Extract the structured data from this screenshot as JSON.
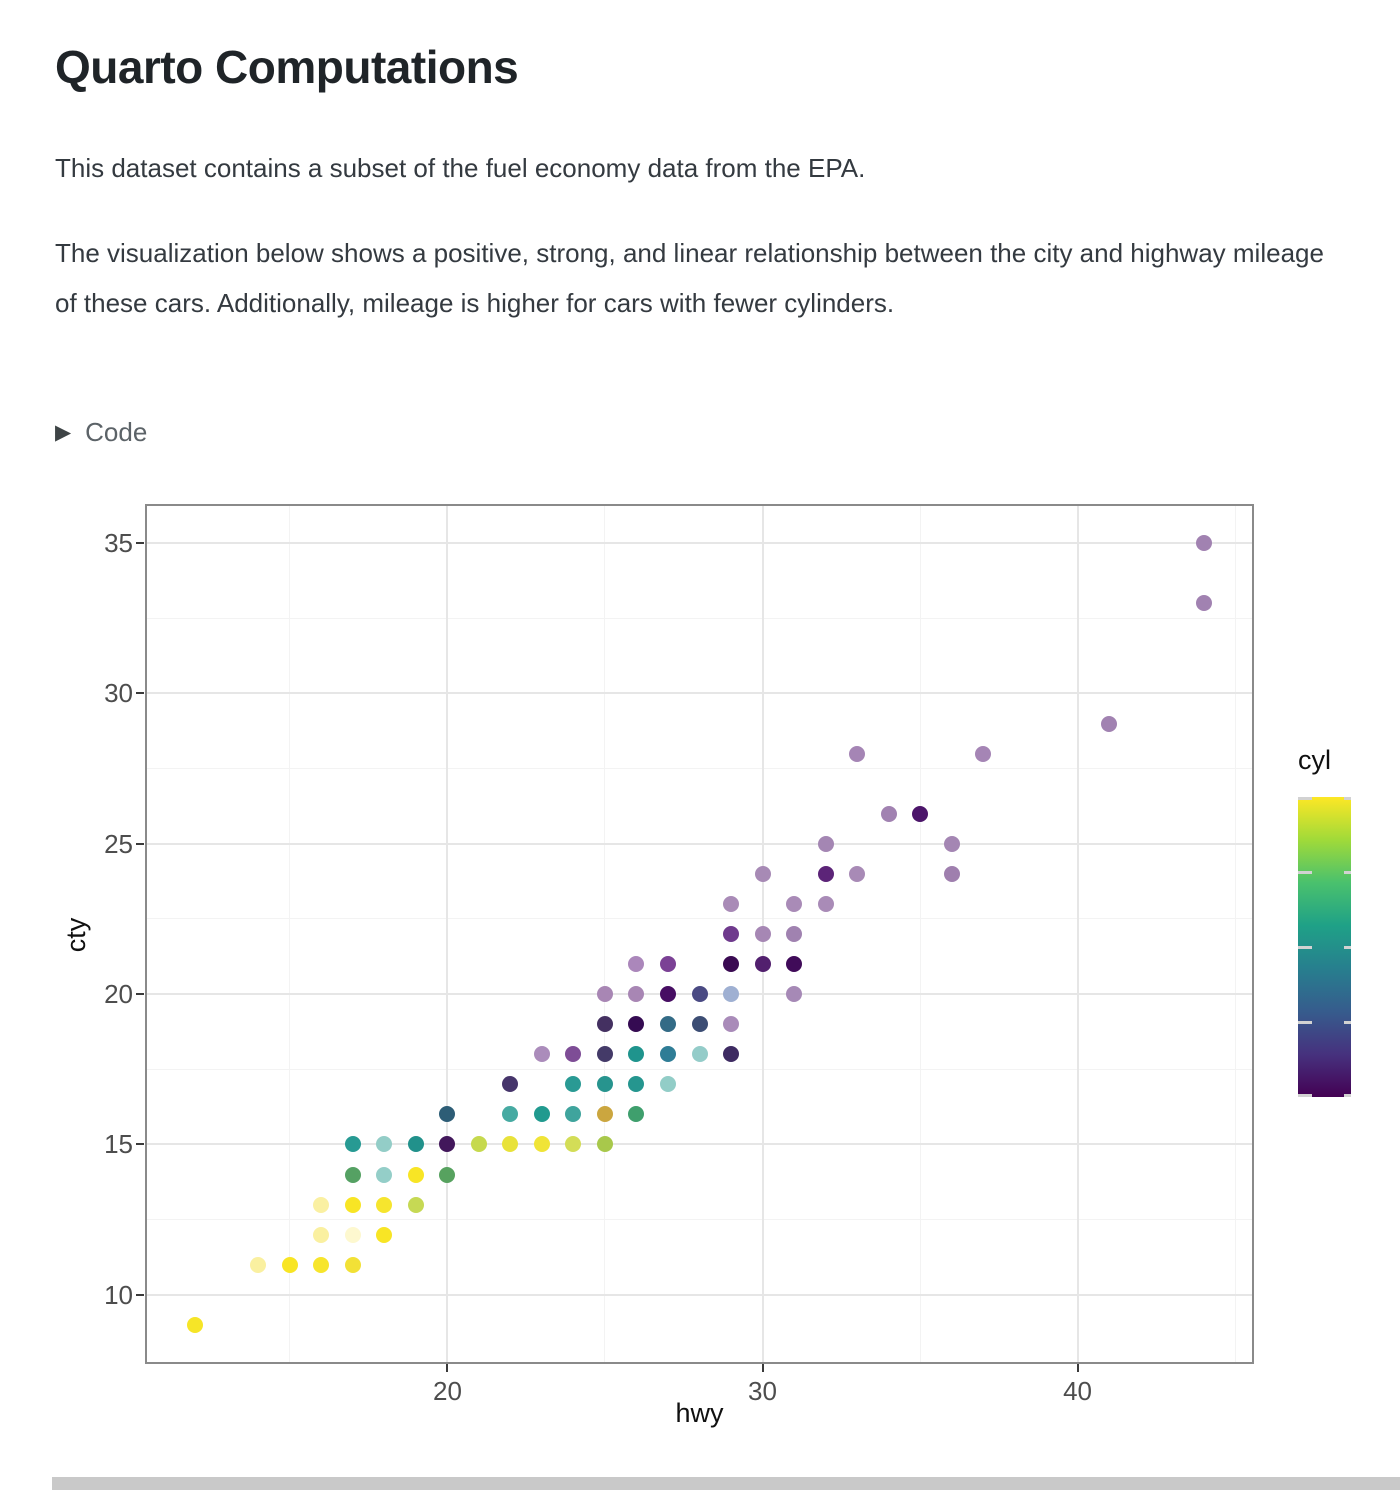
{
  "page": {
    "title": "Quarto Computations",
    "paragraph1": "This dataset contains a subset of the fuel economy data from the EPA.",
    "paragraph2": "The visualization below shows a positive, strong, and linear relationship between the city and highway mileage of these cars. Additionally, mileage is higher for cars with fewer cylinders.",
    "code_toggle": {
      "marker": "▶",
      "label": "Code"
    }
  },
  "chart_data": {
    "type": "scatter",
    "title": "",
    "xlabel": "hwy",
    "ylabel": "cty",
    "x_domain": [
      10.4,
      45.6
    ],
    "y_domain": [
      7.7,
      36.3
    ],
    "x_major_ticks": [
      20,
      30,
      40
    ],
    "x_minor_ticks": [
      15,
      25,
      35,
      45
    ],
    "y_major_ticks": [
      10,
      15,
      20,
      25,
      30,
      35
    ],
    "y_minor_ticks": [
      12.5,
      17.5,
      22.5,
      27.5,
      32.5
    ],
    "grid": {
      "major_color": "#e6e6e6",
      "minor_color": "#f3f3f3",
      "panel_border_color": "#8a8a8a",
      "tick_color": "#3a3a3a",
      "tick_label_color": "#4d4d4d"
    },
    "legend": {
      "title": "cyl",
      "domain": [
        4,
        8
      ],
      "ticks": [
        4,
        5,
        6,
        7,
        8
      ],
      "gradient_bottom_to_top": [
        "#440154",
        "#46327e",
        "#365c8d",
        "#277f8e",
        "#1fa187",
        "#4ac16d",
        "#a0da39",
        "#fde725"
      ],
      "tick_color": "#d2d2d2"
    },
    "points_hwy_cty_color": [
      [
        12,
        9,
        "#f6e527"
      ],
      [
        14,
        11,
        "#faf0a0"
      ],
      [
        15,
        11,
        "#f8e524"
      ],
      [
        16,
        11,
        "#f7e52c"
      ],
      [
        17,
        11,
        "#f2e136"
      ],
      [
        16,
        12,
        "#faf0a0"
      ],
      [
        17,
        12,
        "#fdf8cf"
      ],
      [
        18,
        12,
        "#f8e525"
      ],
      [
        16,
        13,
        "#faf0a2"
      ],
      [
        17,
        13,
        "#f8e525"
      ],
      [
        18,
        13,
        "#f6e52e"
      ],
      [
        19,
        13,
        "#c6d954"
      ],
      [
        17,
        14,
        "#55a163"
      ],
      [
        18,
        14,
        "#94cec8"
      ],
      [
        19,
        14,
        "#f8e525"
      ],
      [
        20,
        14,
        "#57a25f"
      ],
      [
        17,
        15,
        "#279a93"
      ],
      [
        18,
        15,
        "#93cdc7"
      ],
      [
        19,
        15,
        "#21918b"
      ],
      [
        20,
        15,
        "#42175b"
      ],
      [
        21,
        15,
        "#c6d94e"
      ],
      [
        22,
        15,
        "#e8e23a"
      ],
      [
        23,
        15,
        "#f0e437"
      ],
      [
        24,
        15,
        "#d3dd57"
      ],
      [
        25,
        15,
        "#a8c84b"
      ],
      [
        20,
        16,
        "#2d5d76"
      ],
      [
        22,
        16,
        "#46aaa2"
      ],
      [
        23,
        16,
        "#219a8f"
      ],
      [
        24,
        16,
        "#3fa49d"
      ],
      [
        25,
        16,
        "#cba63f"
      ],
      [
        26,
        16,
        "#3f9f6d"
      ],
      [
        22,
        17,
        "#46356b"
      ],
      [
        24,
        17,
        "#2a9a94"
      ],
      [
        25,
        17,
        "#27948e"
      ],
      [
        26,
        17,
        "#25968f"
      ],
      [
        27,
        17,
        "#92cdc7"
      ],
      [
        23,
        18,
        "#ab8cbb"
      ],
      [
        24,
        18,
        "#7e4d96"
      ],
      [
        25,
        18,
        "#443a68"
      ],
      [
        26,
        18,
        "#1f948d"
      ],
      [
        27,
        18,
        "#2f7d96"
      ],
      [
        28,
        18,
        "#94ccc9"
      ],
      [
        29,
        18,
        "#3e2b62"
      ],
      [
        25,
        19,
        "#443061"
      ],
      [
        26,
        19,
        "#350b52"
      ],
      [
        27,
        19,
        "#336b86"
      ],
      [
        28,
        19,
        "#3c4d74"
      ],
      [
        29,
        19,
        "#a98bb9"
      ],
      [
        25,
        20,
        "#a886b4"
      ],
      [
        26,
        20,
        "#a886b4"
      ],
      [
        27,
        20,
        "#470e63"
      ],
      [
        28,
        20,
        "#4a4a83"
      ],
      [
        29,
        20,
        "#9fb0d2"
      ],
      [
        31,
        20,
        "#a689b6"
      ],
      [
        26,
        21,
        "#ab87bb"
      ],
      [
        27,
        21,
        "#7b4195"
      ],
      [
        29,
        21,
        "#3a0a52"
      ],
      [
        30,
        21,
        "#52206e"
      ],
      [
        31,
        21,
        "#400b59"
      ],
      [
        29,
        22,
        "#6f3a8d"
      ],
      [
        30,
        22,
        "#a687b4"
      ],
      [
        31,
        22,
        "#a082b0"
      ],
      [
        29,
        23,
        "#a98bb7"
      ],
      [
        31,
        23,
        "#a98bb7"
      ],
      [
        32,
        23,
        "#a98bb7"
      ],
      [
        30,
        24,
        "#a78ab5"
      ],
      [
        32,
        24,
        "#5c2478"
      ],
      [
        33,
        24,
        "#a88ab6"
      ],
      [
        36,
        24,
        "#9f7fae"
      ],
      [
        32,
        25,
        "#a486b3"
      ],
      [
        36,
        25,
        "#a486b3"
      ],
      [
        34,
        26,
        "#a182b1"
      ],
      [
        35,
        26,
        "#4c156a"
      ],
      [
        33,
        28,
        "#a585b5"
      ],
      [
        37,
        28,
        "#a585b5"
      ],
      [
        41,
        29,
        "#a182b1"
      ],
      [
        44,
        33,
        "#a182b1"
      ],
      [
        44,
        35,
        "#a182b1"
      ]
    ]
  },
  "misc": {
    "bottom_bar_color": "#c9c9c9"
  }
}
